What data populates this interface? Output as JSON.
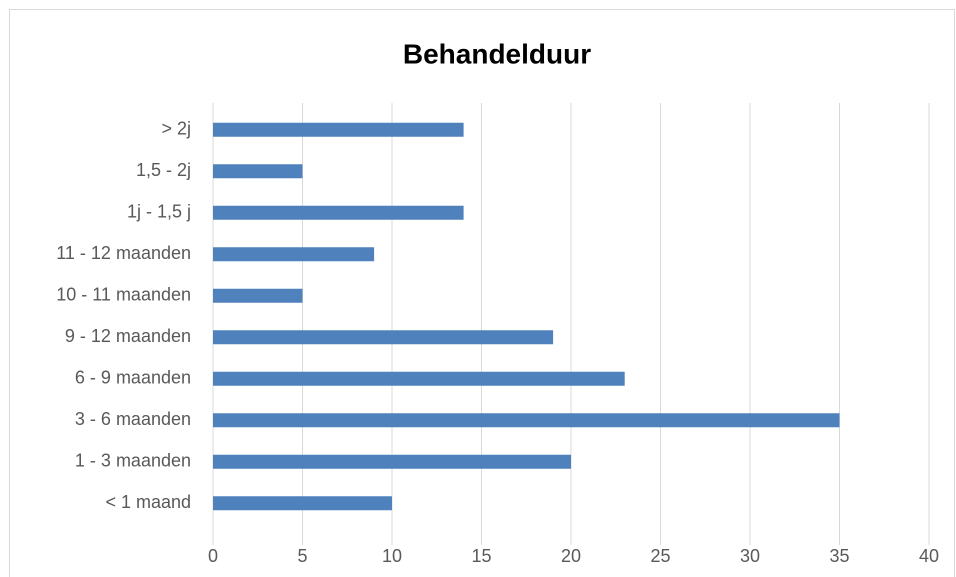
{
  "chart_data": {
    "type": "bar",
    "orientation": "horizontal",
    "title": "Behandelduur",
    "categories": [
      "< 1 maand",
      "1 - 3 maanden",
      "3 - 6 maanden",
      "6 - 9 maanden",
      "9 - 12 maanden",
      "10 - 11 maanden",
      "11 - 12 maanden",
      "1j - 1,5 j",
      "1,5 - 2j",
      "> 2j"
    ],
    "values": [
      10,
      20,
      35,
      23,
      19,
      5,
      9,
      14,
      5,
      14
    ],
    "color": "#4f81bd",
    "xlim": [
      0,
      40
    ],
    "xticks": [
      0,
      5,
      10,
      15,
      20,
      25,
      30,
      35,
      40
    ],
    "grid": true
  }
}
